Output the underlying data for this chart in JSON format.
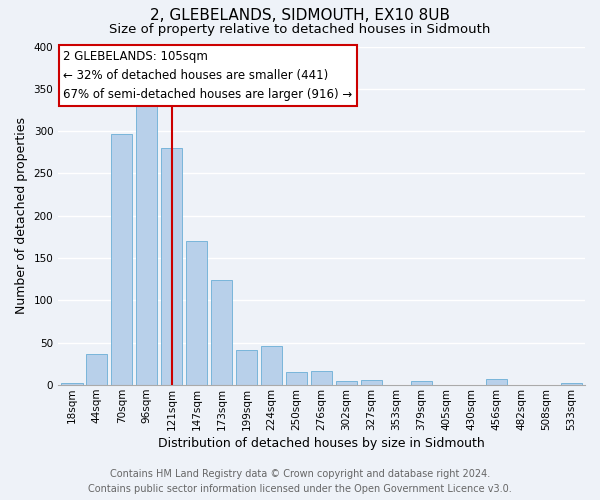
{
  "title": "2, GLEBELANDS, SIDMOUTH, EX10 8UB",
  "subtitle": "Size of property relative to detached houses in Sidmouth",
  "xlabel": "Distribution of detached houses by size in Sidmouth",
  "ylabel": "Number of detached properties",
  "bar_labels": [
    "18sqm",
    "44sqm",
    "70sqm",
    "96sqm",
    "121sqm",
    "147sqm",
    "173sqm",
    "199sqm",
    "224sqm",
    "250sqm",
    "276sqm",
    "302sqm",
    "327sqm",
    "353sqm",
    "379sqm",
    "405sqm",
    "430sqm",
    "456sqm",
    "482sqm",
    "508sqm",
    "533sqm"
  ],
  "bar_values": [
    3,
    37,
    297,
    330,
    280,
    170,
    124,
    42,
    46,
    16,
    17,
    5,
    6,
    0,
    5,
    0,
    0,
    7,
    0,
    0,
    2
  ],
  "bar_color": "#b8d0ea",
  "bar_edge_color": "#6aaed6",
  "vline_x": 4.0,
  "vline_color": "#cc0000",
  "annotation_title": "2 GLEBELANDS: 105sqm",
  "annotation_line1": "← 32% of detached houses are smaller (441)",
  "annotation_line2": "67% of semi-detached houses are larger (916) →",
  "annotation_box_color": "#ffffff",
  "annotation_box_edge": "#cc0000",
  "ylim": [
    0,
    400
  ],
  "yticks": [
    0,
    50,
    100,
    150,
    200,
    250,
    300,
    350,
    400
  ],
  "footer_line1": "Contains HM Land Registry data © Crown copyright and database right 2024.",
  "footer_line2": "Contains public sector information licensed under the Open Government Licence v3.0.",
  "bg_color": "#eef2f8",
  "grid_color": "#ffffff",
  "title_fontsize": 11,
  "subtitle_fontsize": 9.5,
  "axis_label_fontsize": 9,
  "tick_fontsize": 7.5,
  "footer_fontsize": 7
}
